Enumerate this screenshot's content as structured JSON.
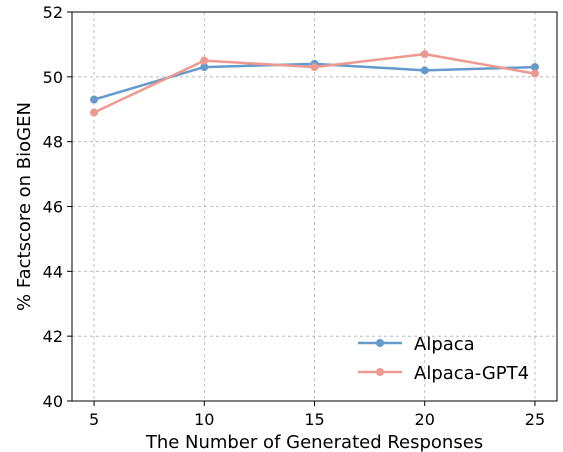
{
  "chart_data": {
    "type": "line",
    "xlabel": "The Number of Generated Responses",
    "ylabel": "% Factscore on BioGEN",
    "x": [
      5,
      10,
      15,
      20,
      25
    ],
    "xticks": [
      "5",
      "10",
      "15",
      "20",
      "25"
    ],
    "yticks": [
      "40",
      "42",
      "44",
      "46",
      "48",
      "50",
      "52"
    ],
    "xlim": [
      4,
      26
    ],
    "ylim": [
      40,
      52
    ],
    "grid": true,
    "legend_position": "bottom-right",
    "series": [
      {
        "name": "Alpaca",
        "color": "#6699cc",
        "values": [
          49.3,
          50.3,
          50.4,
          50.2,
          50.3
        ]
      },
      {
        "name": "Alpaca-GPT4",
        "color": "#ee9990",
        "values": [
          48.9,
          50.5,
          50.3,
          50.7,
          50.1
        ]
      }
    ]
  }
}
